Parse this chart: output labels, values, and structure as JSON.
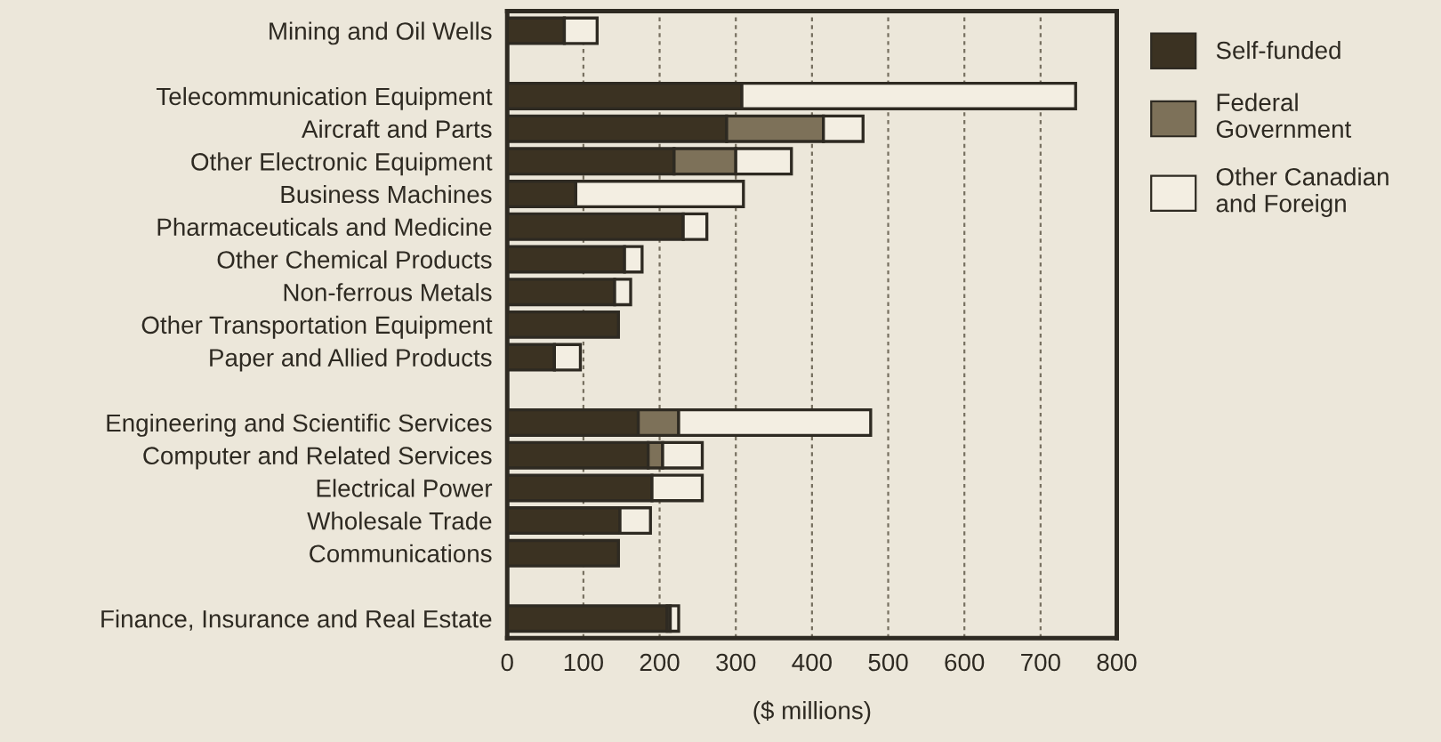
{
  "chart_data": {
    "type": "bar",
    "orientation": "horizontal",
    "stacked": true,
    "xlabel": "($ millions)",
    "categories": [
      "Mining and Oil Wells",
      null,
      "Telecommunication Equipment",
      "Aircraft and Parts",
      "Other Electronic Equipment",
      "Business Machines",
      "Pharmaceuticals and Medicine",
      "Other Chemical Products",
      "Non-ferrous Metals",
      "Other Transportation Equipment",
      "Paper and Allied Products",
      null,
      "Engineering and Scientific Services",
      "Computer and Related Services",
      "Electrical Power",
      "Wholesale Trade",
      "Communications",
      null,
      "Finance, Insurance and Real Estate"
    ],
    "series": [
      {
        "name": "Self-funded",
        "color": "#3b3222",
        "values": [
          75,
          null,
          308,
          288,
          219,
          90,
          231,
          154,
          141,
          146,
          62,
          null,
          172,
          185,
          190,
          148,
          146,
          null,
          210
        ]
      },
      {
        "name": "Federal\nGovernment",
        "color": "#7d7159",
        "values": [
          0,
          null,
          0,
          127,
          81,
          0,
          0,
          0,
          0,
          0,
          0,
          null,
          53,
          19,
          0,
          0,
          0,
          null,
          4
        ]
      },
      {
        "name": "Other Canadian\nand Foreign",
        "color": "#f3eee2",
        "values": [
          43,
          null,
          438,
          52,
          73,
          220,
          31,
          23,
          21,
          0,
          34,
          null,
          252,
          52,
          66,
          40,
          0,
          null,
          11
        ]
      }
    ],
    "xlim": [
      0,
      800
    ],
    "xticks": [
      0,
      100,
      200,
      300,
      400,
      500,
      600,
      700,
      800
    ],
    "grid": "x",
    "legend": "right"
  }
}
